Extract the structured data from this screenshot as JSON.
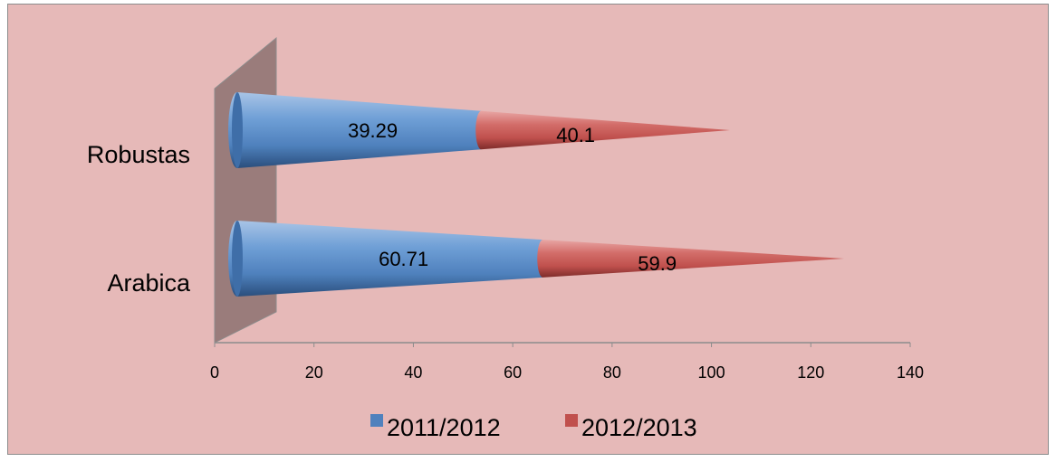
{
  "chart_data": {
    "type": "bar",
    "orientation": "horizontal",
    "shape": "cone",
    "stacked": true,
    "categories": [
      "Robustas",
      "Arabica"
    ],
    "series": [
      {
        "name": "2011/2012",
        "values": [
          39.29,
          60.71
        ],
        "value_labels": [
          "39.29",
          "60.71"
        ],
        "color": "#4f81bd"
      },
      {
        "name": "2012/2013",
        "values": [
          40.1,
          59.9
        ],
        "value_labels": [
          "40.1",
          "59.9"
        ],
        "color": "#c0504d"
      }
    ],
    "xlim": [
      0,
      140
    ],
    "xticks": [
      "0",
      "20",
      "40",
      "60",
      "80",
      "100",
      "120",
      "140"
    ],
    "grid": false,
    "legend_position": "bottom",
    "background_color": "#e6b9b8",
    "wall_color": "#9a7c7b"
  }
}
